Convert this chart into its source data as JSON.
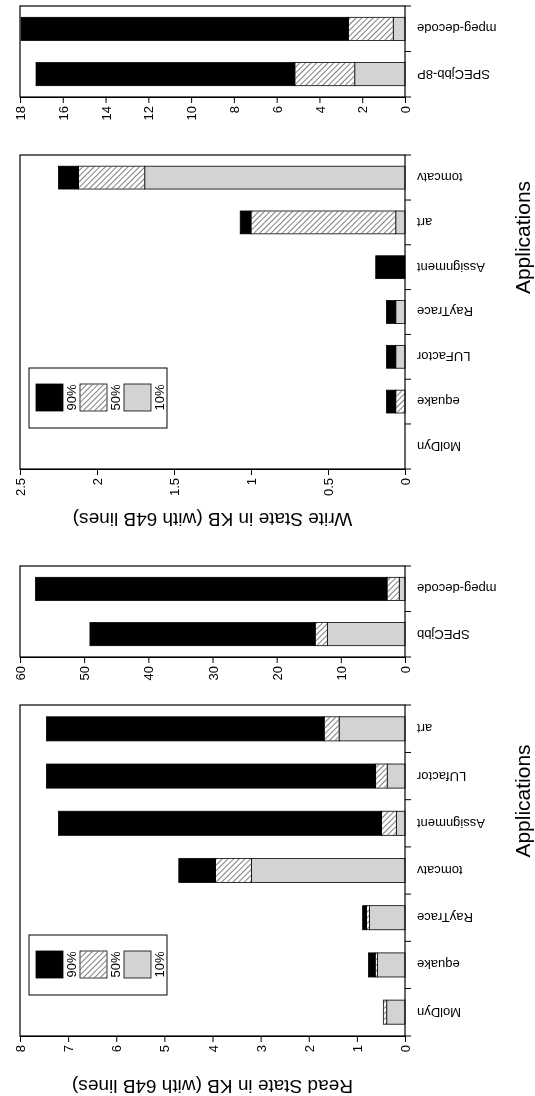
{
  "chart_data": [
    {
      "type": "bar",
      "orientation": "horizontal",
      "stacked": true,
      "categories": [
        "mpeg-decode",
        "SPECjbb-8P"
      ],
      "series": [
        {
          "color": "#d3d3d3",
          "values": [
            0.55,
            2.35
          ]
        },
        {
          "color": "#ffffff",
          "values": [
            2.1,
            2.8
          ]
        },
        {
          "color": "#000000",
          "values": [
            15.3,
            12.1
          ]
        }
      ],
      "xlim": [
        18,
        0
      ],
      "xticks": [
        0,
        2,
        4,
        6,
        8,
        10,
        12,
        14,
        16,
        18
      ],
      "legend": false
    },
    {
      "type": "bar",
      "orientation": "horizontal",
      "stacked": true,
      "xlabel": "Write State in KB (with 64B lines)",
      "ylabel": "Applications",
      "categories": [
        "tomcatv",
        "art",
        "Assignment",
        "RayTrace",
        "LUFactor",
        "equake",
        "MolDyn"
      ],
      "series": [
        {
          "name": "10%",
          "color": "#d3d3d3",
          "values": [
            1.69,
            0.06,
            0,
            0.06,
            0.06,
            0,
            0
          ]
        },
        {
          "name": "50%",
          "color": "#ffffff",
          "values": [
            0.43,
            0.94,
            0,
            0,
            0,
            0.06,
            0
          ]
        },
        {
          "name": "90%",
          "color": "#000000",
          "values": [
            0.13,
            0.07,
            0.19,
            0.06,
            0.06,
            0.06,
            0
          ]
        }
      ],
      "xlim": [
        2.5,
        0
      ],
      "xticks": [
        0,
        0.5,
        1,
        1.5,
        2,
        2.5
      ],
      "legend": "bottom left"
    },
    {
      "type": "bar",
      "orientation": "horizontal",
      "stacked": true,
      "categories": [
        "mpeg-decode",
        "SPECjbb"
      ],
      "series": [
        {
          "color": "#d3d3d3",
          "values": [
            0.9,
            12.1
          ]
        },
        {
          "color": "#ffffff",
          "values": [
            1.9,
            1.9
          ]
        },
        {
          "color": "#000000",
          "values": [
            54.8,
            35.1
          ]
        }
      ],
      "xlim": [
        60,
        0
      ],
      "xticks": [
        0,
        10,
        20,
        30,
        40,
        50,
        60
      ],
      "legend": false
    },
    {
      "type": "bar",
      "orientation": "horizontal",
      "stacked": true,
      "xlabel": "Read State in KB (with 64B lines)",
      "ylabel": "Applications",
      "categories": [
        "art",
        "LUfactor",
        "Assignment",
        "tomcatv",
        "RayTrace",
        "equake",
        "MolDyn"
      ],
      "series": [
        {
          "name": "10%",
          "color": "#d3d3d3",
          "values": [
            1.37,
            0.37,
            0.18,
            3.19,
            0.74,
            0.57,
            0.38
          ]
        },
        {
          "name": "50%",
          "color": "#ffffff",
          "values": [
            0.31,
            0.24,
            0.31,
            0.75,
            0.06,
            0.05,
            0.07
          ]
        },
        {
          "name": "90%",
          "color": "#000000",
          "values": [
            5.77,
            6.84,
            6.71,
            0.76,
            0.08,
            0.14,
            0
          ]
        }
      ],
      "xlim": [
        8,
        0
      ],
      "xticks": [
        0,
        1,
        2,
        3,
        4,
        5,
        6,
        7,
        8
      ],
      "legend": "bottom left"
    }
  ]
}
